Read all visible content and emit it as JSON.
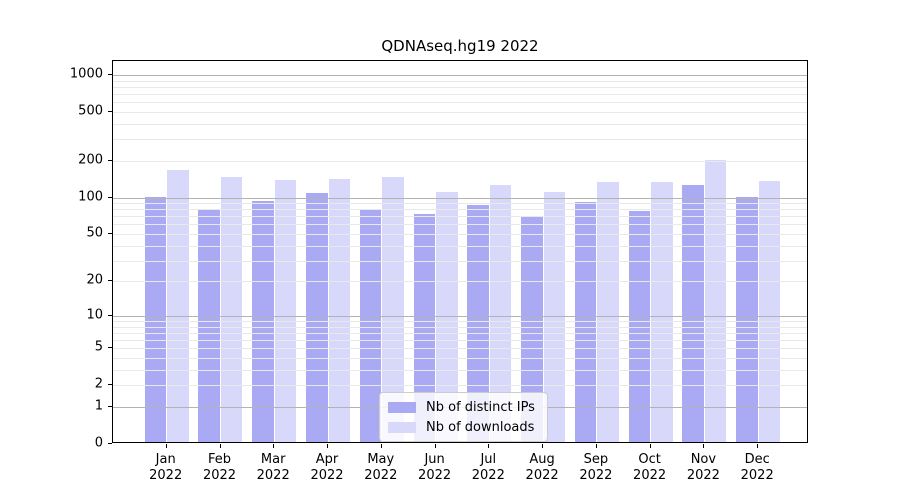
{
  "title": "QDNAseq.hg19 2022",
  "chart_data": {
    "type": "bar",
    "title": "QDNAseq.hg19 2022",
    "months": [
      "Jan",
      "Feb",
      "Mar",
      "Apr",
      "May",
      "Jun",
      "Jul",
      "Aug",
      "Sep",
      "Oct",
      "Nov",
      "Dec"
    ],
    "year": "2022",
    "series": [
      {
        "name": "Nb of distinct IPs",
        "color": "#a9a9f4",
        "values": [
          97,
          78,
          90,
          104,
          78,
          71,
          84,
          68,
          88,
          75,
          122,
          98
        ]
      },
      {
        "name": "Nb of downloads",
        "color": "#d8d8fa",
        "values": [
          162,
          142,
          134,
          137,
          142,
          107,
          122,
          107,
          129,
          129,
          194,
          131
        ]
      }
    ],
    "scale": "log1p",
    "ylim": [
      0,
      1300
    ],
    "yticks": [
      0,
      1,
      2,
      5,
      10,
      20,
      50,
      100,
      200,
      500,
      1000
    ],
    "grid": true,
    "legend_position": "bottom-center"
  },
  "colors": {
    "background": "#ffffff",
    "axis": "#000000",
    "grid_minor": "#e9e9e9",
    "grid_major": "#b3b3b3",
    "text": "#000000"
  }
}
